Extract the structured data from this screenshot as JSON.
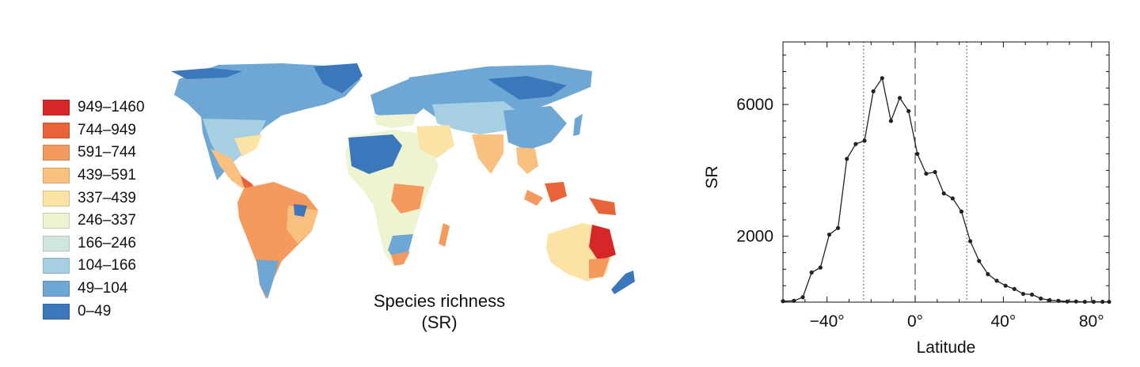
{
  "map": {
    "caption_line1": "Species richness",
    "caption_line2": "(SR)",
    "legend": [
      {
        "label": "949–1460",
        "color": "#d62728"
      },
      {
        "label": "744–949",
        "color": "#e8623a"
      },
      {
        "label": "591–744",
        "color": "#f39a5c"
      },
      {
        "label": "439–591",
        "color": "#f9c07f"
      },
      {
        "label": "337–439",
        "color": "#fbe3a5"
      },
      {
        "label": "246–337",
        "color": "#eef3d1"
      },
      {
        "label": "166–246",
        "color": "#cfe6df"
      },
      {
        "label": "104–166",
        "color": "#a6cfe4"
      },
      {
        "label": "49–104",
        "color": "#6ea6d4"
      },
      {
        "label": "0–49",
        "color": "#3a78bb"
      }
    ]
  },
  "chart_data": {
    "type": "line",
    "xlabel": "Latitude",
    "ylabel": "SR",
    "xlim": [
      -60,
      88
    ],
    "ylim": [
      0,
      7900
    ],
    "xticks": [
      {
        "value": -40,
        "label": "−40°"
      },
      {
        "value": 0,
        "label": "0°"
      },
      {
        "value": 40,
        "label": "40°"
      },
      {
        "value": 80,
        "label": "80°"
      }
    ],
    "yticks": [
      {
        "value": 2000,
        "label": "2000"
      },
      {
        "value": 6000,
        "label": "6000"
      }
    ],
    "vlines": [
      {
        "x": -23.4,
        "style": "dotted"
      },
      {
        "x": 0,
        "style": "dashed"
      },
      {
        "x": 23.4,
        "style": "dotted"
      }
    ],
    "line_color": "#222222",
    "series": [
      {
        "x": [
          -60,
          -55,
          -51,
          -47,
          -43,
          -39,
          -35,
          -31,
          -27,
          -23,
          -19,
          -15,
          -11,
          -7,
          -3,
          1,
          5,
          9,
          13,
          17,
          21,
          25,
          29,
          33,
          37,
          41,
          45,
          49,
          53,
          57,
          61,
          65,
          69,
          73,
          77,
          81,
          85,
          88
        ],
        "y": [
          30,
          40,
          150,
          900,
          1050,
          2050,
          2250,
          4350,
          4800,
          4900,
          6400,
          6800,
          5500,
          6200,
          5800,
          4500,
          3900,
          3950,
          3300,
          3150,
          2750,
          1850,
          1250,
          850,
          650,
          500,
          400,
          250,
          230,
          110,
          60,
          40,
          20,
          20,
          10,
          10,
          10,
          10
        ]
      }
    ]
  }
}
